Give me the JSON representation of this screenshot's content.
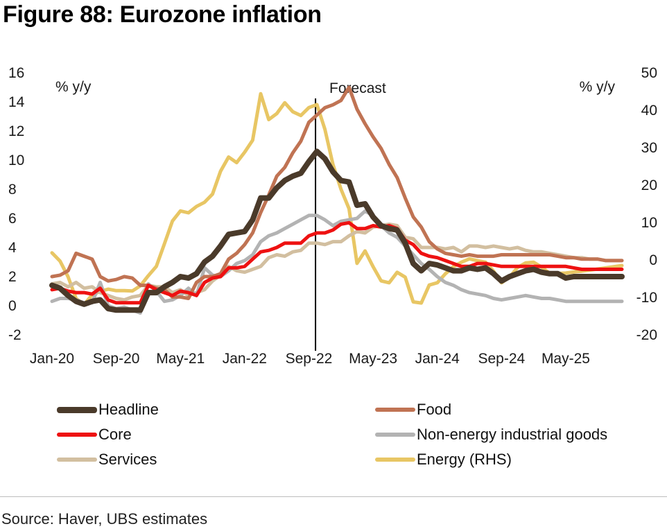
{
  "figure": {
    "title": "Figure 88: Eurozone inflation",
    "source": "Source: Haver, UBS estimates"
  },
  "chart_data": {
    "type": "line",
    "title": "Figure 88: Eurozone inflation",
    "ylabel_left": "% y/y",
    "ylabel_right": "% y/y",
    "ylim_left": [
      -2,
      16
    ],
    "ylim_right": [
      -20,
      50
    ],
    "yticks_left": [
      "-2",
      "0",
      "2",
      "4",
      "6",
      "8",
      "10",
      "12",
      "14",
      "16"
    ],
    "yticks_right": [
      "-20",
      "-10",
      "0",
      "10",
      "20",
      "30",
      "40",
      "50"
    ],
    "x_start": "Jan-20",
    "x_end": "Dec-25",
    "x_tick_labels": [
      "Jan-20",
      "Sep-20",
      "May-21",
      "Jan-22",
      "Sep-22",
      "May-23",
      "Jan-24",
      "Sep-24",
      "May-25"
    ],
    "forecast_start": "Oct-22",
    "forecast_label": "Forecast",
    "grid": false,
    "legend_position": "bottom",
    "series": [
      {
        "name": "Headline",
        "axis": "left",
        "color": "#4a3a2a",
        "width": 8,
        "values": [
          1.4,
          1.2,
          0.7,
          0.3,
          0.1,
          0.3,
          0.4,
          -0.2,
          -0.3,
          -0.3,
          -0.3,
          -0.3,
          0.9,
          0.9,
          1.3,
          1.6,
          2.0,
          1.9,
          2.2,
          3.0,
          3.4,
          4.1,
          4.9,
          5.0,
          5.1,
          5.9,
          7.4,
          7.4,
          8.1,
          8.6,
          8.9,
          9.1,
          9.9,
          10.6,
          10.1,
          9.2,
          8.6,
          8.5,
          6.9,
          7.0,
          6.1,
          5.5,
          5.3,
          5.2,
          4.3,
          2.9,
          2.4,
          2.9,
          2.8,
          2.6,
          2.4,
          2.4,
          2.6,
          2.5,
          2.6,
          2.2,
          1.7,
          2.0,
          2.2,
          2.4,
          2.5,
          2.3,
          2.2,
          2.2,
          1.9,
          2.0,
          2.0,
          2.0,
          2.0,
          2.0,
          2.0,
          2.0
        ]
      },
      {
        "name": "Food",
        "axis": "left",
        "color": "#c07353",
        "width": 5,
        "values": [
          2.0,
          2.1,
          2.4,
          3.6,
          3.4,
          3.2,
          2.0,
          1.7,
          1.8,
          2.0,
          1.9,
          1.4,
          1.4,
          1.2,
          1.1,
          0.6,
          0.6,
          0.5,
          1.6,
          2.0,
          2.0,
          2.2,
          3.2,
          3.6,
          4.2,
          5.0,
          6.4,
          7.6,
          8.9,
          9.5,
          10.5,
          11.3,
          12.6,
          13.1,
          13.6,
          13.8,
          14.1,
          15.0,
          13.5,
          12.5,
          11.6,
          10.8,
          9.7,
          8.8,
          7.4,
          6.1,
          5.4,
          4.4,
          3.9,
          3.6,
          3.5,
          3.4,
          3.5,
          3.4,
          3.4,
          3.4,
          3.5,
          3.5,
          3.5,
          3.5,
          3.5,
          3.5,
          3.5,
          3.4,
          3.3,
          3.3,
          3.2,
          3.2,
          3.2,
          3.1,
          3.1,
          3.1
        ]
      },
      {
        "name": "Core",
        "axis": "left",
        "color": "#ee1111",
        "width": 5,
        "values": [
          1.1,
          1.2,
          1.0,
          0.9,
          0.9,
          0.8,
          1.2,
          0.4,
          0.2,
          0.2,
          0.2,
          0.2,
          1.4,
          1.1,
          0.9,
          0.7,
          1.0,
          0.9,
          0.7,
          1.6,
          1.9,
          2.0,
          2.6,
          2.6,
          2.7,
          3.2,
          3.7,
          3.8,
          4.0,
          4.3,
          4.3,
          4.3,
          4.8,
          5.0,
          5.0,
          5.2,
          5.6,
          5.7,
          5.3,
          5.3,
          5.5,
          5.4,
          5.5,
          5.3,
          4.5,
          4.2,
          3.6,
          3.4,
          3.3,
          3.1,
          2.9,
          2.7,
          2.7,
          2.9,
          2.9,
          2.8,
          2.7,
          2.7,
          2.7,
          2.7,
          2.7,
          2.7,
          2.7,
          2.7,
          2.7,
          2.6,
          2.5,
          2.5,
          2.5,
          2.5,
          2.5,
          2.5
        ]
      },
      {
        "name": "Non-energy industrial goods",
        "axis": "left",
        "color": "#b3b3b3",
        "width": 5,
        "values": [
          0.3,
          0.5,
          0.5,
          0.4,
          0.2,
          0.2,
          1.6,
          0.0,
          -0.2,
          -0.1,
          -0.3,
          -0.5,
          1.5,
          1.0,
          0.3,
          0.4,
          0.7,
          1.2,
          0.7,
          2.6,
          2.1,
          2.0,
          2.4,
          2.9,
          3.1,
          3.5,
          4.4,
          4.8,
          5.0,
          5.3,
          5.6,
          5.9,
          6.2,
          6.2,
          5.9,
          5.5,
          5.8,
          5.9,
          6.0,
          6.5,
          6.2,
          5.5,
          5.0,
          4.7,
          4.1,
          3.5,
          2.9,
          2.5,
          2.0,
          1.6,
          1.4,
          1.1,
          0.9,
          0.8,
          0.7,
          0.5,
          0.4,
          0.5,
          0.6,
          0.7,
          0.6,
          0.5,
          0.5,
          0.4,
          0.3,
          0.3,
          0.3,
          0.3,
          0.3,
          0.3,
          0.3,
          0.3
        ]
      },
      {
        "name": "Services",
        "axis": "left",
        "color": "#d2bfa0",
        "width": 5,
        "values": [
          1.5,
          1.6,
          1.3,
          1.6,
          1.2,
          1.3,
          0.9,
          0.7,
          0.5,
          0.4,
          0.6,
          0.7,
          1.4,
          1.3,
          1.3,
          0.9,
          1.1,
          0.7,
          0.9,
          1.1,
          1.7,
          2.1,
          2.7,
          2.4,
          2.3,
          2.5,
          2.7,
          3.3,
          3.5,
          3.4,
          3.7,
          3.8,
          4.3,
          4.3,
          4.2,
          4.4,
          4.4,
          4.8,
          5.1,
          5.0,
          5.4,
          5.5,
          5.6,
          5.5,
          4.7,
          4.6,
          4.0,
          4.0,
          4.0,
          3.9,
          4.0,
          3.7,
          4.1,
          4.1,
          4.0,
          4.1,
          4.0,
          3.9,
          4.0,
          3.8,
          3.7,
          3.7,
          3.6,
          3.5,
          3.4,
          3.3,
          3.3,
          3.2,
          3.2,
          3.1,
          3.1,
          3.1
        ]
      },
      {
        "name": "Energy (RHS)",
        "axis": "right",
        "color": "#e8c664",
        "width": 5,
        "values": [
          1.9,
          -0.3,
          -4.5,
          -10.3,
          -11.9,
          -9.3,
          -8.4,
          -7.8,
          -8.2,
          -8.2,
          -8.3,
          -6.9,
          -4.2,
          -1.7,
          4.3,
          10.4,
          13.1,
          12.6,
          14.3,
          15.4,
          17.6,
          23.7,
          27.5,
          26.0,
          28.8,
          32.0,
          44.4,
          37.5,
          39.1,
          42.0,
          39.6,
          38.6,
          40.7,
          41.5,
          34.9,
          25.5,
          18.9,
          13.7,
          -0.9,
          2.4,
          -1.8,
          -5.6,
          -6.1,
          -3.3,
          -4.6,
          -11.2,
          -11.5,
          -6.7,
          -6.1,
          -3.7,
          -1.8,
          -0.6,
          0.3,
          -0.2,
          -0.6,
          -3.0,
          -6.1,
          -4.6,
          -2.0,
          -0.8,
          -0.6,
          -1.9,
          -3.6,
          -3.6,
          -3.5,
          -3.2,
          -3.0,
          -2.7,
          -2.4,
          -2.1,
          -1.8,
          -1.5
        ]
      }
    ],
    "legend": [
      {
        "name": "Headline",
        "color": "#4a3a2a"
      },
      {
        "name": "Food",
        "color": "#c07353"
      },
      {
        "name": "Core",
        "color": "#ee1111"
      },
      {
        "name": "Non-energy industrial goods",
        "color": "#b3b3b3"
      },
      {
        "name": "Services",
        "color": "#d2bfa0"
      },
      {
        "name": "Energy (RHS)",
        "color": "#e8c664"
      }
    ]
  }
}
